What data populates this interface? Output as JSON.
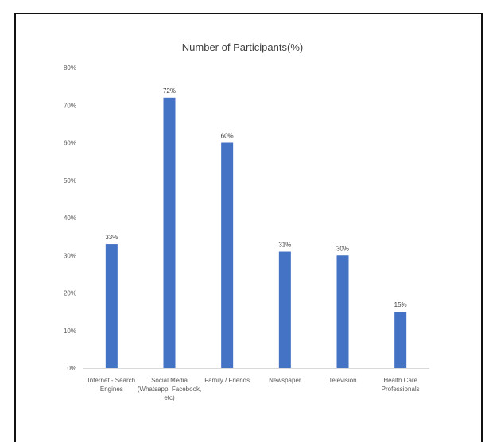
{
  "chart_data": {
    "type": "bar",
    "title": "Number of Participants(%)",
    "categories": [
      [
        "Internet - Search",
        "Engines"
      ],
      [
        "Social Media",
        "(Whatsapp, Facebook,",
        "etc)"
      ],
      [
        "Family / Friends"
      ],
      [
        "Newspaper"
      ],
      [
        "Television"
      ],
      [
        "Health Care",
        "Professionals"
      ]
    ],
    "values": [
      33,
      72,
      60,
      31,
      30,
      15
    ],
    "data_labels": [
      "33%",
      "72%",
      "60%",
      "31%",
      "30%",
      "15%"
    ],
    "y_ticks": [
      "0%",
      "10%",
      "20%",
      "30%",
      "40%",
      "50%",
      "60%",
      "70%",
      "80%"
    ],
    "ylim": [
      0,
      80
    ],
    "bar_color": "#4472C4",
    "grid": false,
    "legend": "none"
  }
}
